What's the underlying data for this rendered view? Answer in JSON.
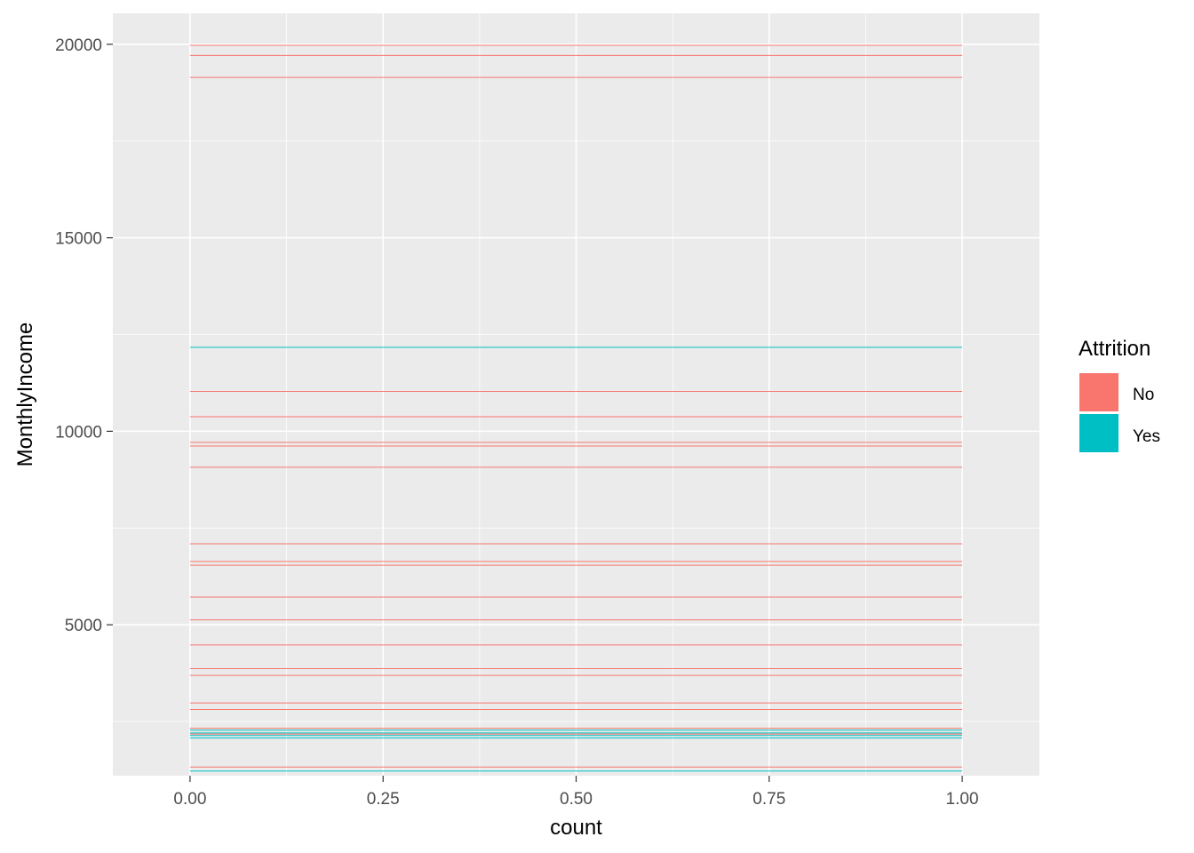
{
  "chart_data": {
    "type": "bar",
    "xlabel": "count",
    "ylabel": "MonthlyIncome",
    "xlim": [
      -0.1,
      1.1
    ],
    "ylim": [
      1100,
      20800
    ],
    "x_ticks": [
      {
        "value": 0.0,
        "label": "0.00"
      },
      {
        "value": 0.25,
        "label": "0.25"
      },
      {
        "value": 0.5,
        "label": "0.50"
      },
      {
        "value": 0.75,
        "label": "0.75"
      },
      {
        "value": 1.0,
        "label": "1.00"
      }
    ],
    "y_ticks": [
      {
        "value": 5000,
        "label": "5000"
      },
      {
        "value": 10000,
        "label": "10000"
      },
      {
        "value": 15000,
        "label": "15000"
      },
      {
        "value": 20000,
        "label": "20000"
      }
    ],
    "grid": true,
    "legend": {
      "title": "Attrition",
      "position": "right",
      "entries": [
        {
          "label": "No",
          "color": "#F8766D"
        },
        {
          "label": "Yes",
          "color": "#00BFC4"
        }
      ]
    },
    "series": [
      {
        "name": "No",
        "color": "#F8766D",
        "values": [
          19973,
          19713,
          19144,
          11031,
          10377,
          9714,
          9619,
          9069,
          7094,
          6635,
          6538,
          5714,
          5126,
          4477,
          3867,
          3692,
          2981,
          2811,
          2325,
          2176,
          1325
        ]
      },
      {
        "name": "Yes",
        "color": "#00BFC4",
        "values": [
          12169,
          2276,
          2206,
          2138,
          2074,
          1220
        ]
      }
    ],
    "bar_x_range": [
      0,
      1
    ]
  }
}
